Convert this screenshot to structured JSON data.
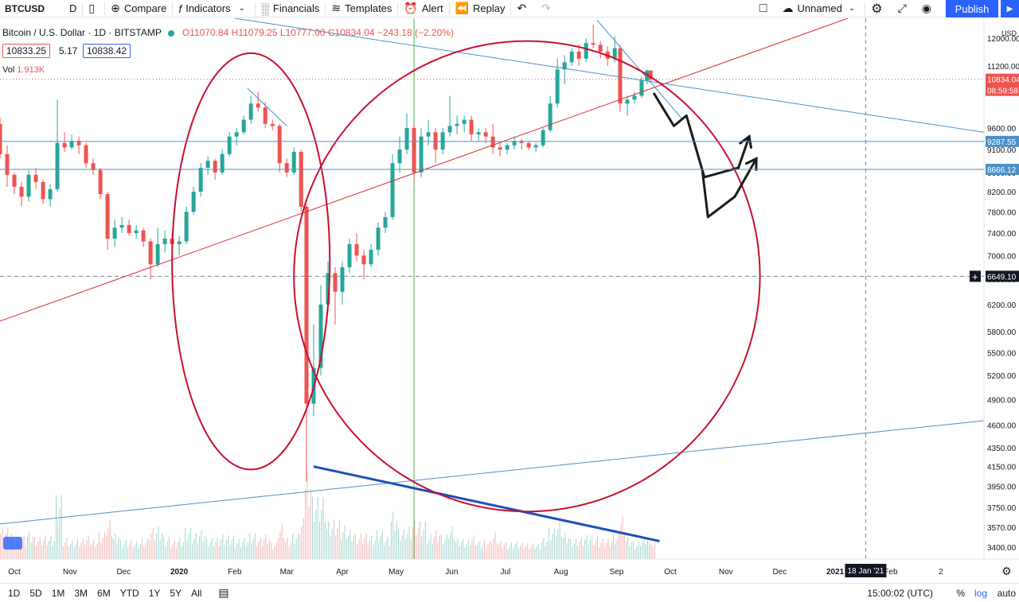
{
  "toolbar": {
    "symbol": "BTCUSD",
    "interval": "D",
    "compare": "Compare",
    "indicators": "Indicators",
    "financials": "Financials",
    "templates": "Templates",
    "alert": "Alert",
    "replay": "Replay",
    "layout_name": "Unnamed",
    "publish": "Publish"
  },
  "legend": {
    "title": "Bitcoin / U.S. Dollar · 1D · BITSTAMP",
    "ohlc": "O11070.84 H11079.25 L10777.00 C10834.04 −243.18 (−2.20%)",
    "bid": "10833.25",
    "spread": "5.17",
    "ask": "10838.42",
    "vol_label": "Vol",
    "vol_value": "1.913K"
  },
  "bottom": {
    "ranges": [
      "1D",
      "5D",
      "1M",
      "3M",
      "6M",
      "YTD",
      "1Y",
      "5Y",
      "All"
    ],
    "clock": "15:00:02 (UTC)",
    "percent": "%",
    "log": "log",
    "auto": "auto"
  },
  "colors": {
    "up": "#26a69a",
    "down": "#ef5350",
    "accent": "#2962ff",
    "circle": "#c8102e",
    "trend_red": "#d32f2f",
    "trend_blue": "#1e4fb8",
    "hline": "#4a90c8"
  },
  "chart_data": {
    "type": "candlestick",
    "title": "Bitcoin / U.S. Dollar · 1D · BITSTAMP",
    "y_scale": "log",
    "ylim": [
      3300,
      12600
    ],
    "y_ticks": [
      3400,
      3570,
      3750,
      3950,
      4150,
      4350,
      4600,
      4900,
      5200,
      5500,
      5800,
      6200,
      6600,
      7000,
      7400,
      7800,
      8200,
      8600,
      9100,
      9600,
      11200,
      12000
    ],
    "x_ticks": [
      {
        "label": "Oct",
        "date": "2019-10-01"
      },
      {
        "label": "Nov",
        "date": "2019-11-01"
      },
      {
        "label": "Dec",
        "date": "2019-12-01"
      },
      {
        "label": "2020",
        "date": "2020-01-01"
      },
      {
        "label": "Feb",
        "date": "2020-02-01"
      },
      {
        "label": "Mar",
        "date": "2020-03-01"
      },
      {
        "label": "Apr",
        "date": "2020-04-01"
      },
      {
        "label": "May",
        "date": "2020-05-01"
      },
      {
        "label": "Jun",
        "date": "2020-06-01"
      },
      {
        "label": "Jul",
        "date": "2020-07-01"
      },
      {
        "label": "Aug",
        "date": "2020-08-01"
      },
      {
        "label": "Sep",
        "date": "2020-09-01"
      },
      {
        "label": "Oct",
        "date": "2020-10-01"
      },
      {
        "label": "Nov",
        "date": "2020-11-01"
      },
      {
        "label": "Dec",
        "date": "2020-12-01"
      },
      {
        "label": "2021",
        "date": "2021-01-01"
      },
      {
        "label": "Feb",
        "date": "2021-02-01"
      },
      {
        "label": "2",
        "date": "2021-03-01"
      }
    ],
    "x_range": [
      "2019-09-23",
      "2021-03-25"
    ],
    "axis_currency": "USD",
    "candles": [
      [
        "2019-09-23",
        9700,
        9850,
        8900,
        9000
      ],
      [
        "2019-09-27",
        9000,
        9200,
        8300,
        8550
      ],
      [
        "2019-10-01",
        8550,
        8600,
        8150,
        8300
      ],
      [
        "2019-10-05",
        8300,
        8400,
        7900,
        8100
      ],
      [
        "2019-10-09",
        8100,
        8650,
        8000,
        8550
      ],
      [
        "2019-10-13",
        8550,
        8700,
        8250,
        8400
      ],
      [
        "2019-10-17",
        8400,
        8450,
        7950,
        8050
      ],
      [
        "2019-10-21",
        8050,
        8350,
        7900,
        8250
      ],
      [
        "2019-10-25",
        8250,
        10300,
        8200,
        9250
      ],
      [
        "2019-10-29",
        9250,
        9500,
        9050,
        9150
      ],
      [
        "2019-11-02",
        9150,
        9450,
        9100,
        9300
      ],
      [
        "2019-11-06",
        9300,
        9400,
        9000,
        9200
      ],
      [
        "2019-11-10",
        9200,
        9250,
        8700,
        8800
      ],
      [
        "2019-11-14",
        8800,
        8900,
        8550,
        8650
      ],
      [
        "2019-11-18",
        8650,
        8700,
        8050,
        8150
      ],
      [
        "2019-11-22",
        8150,
        8200,
        7100,
        7300
      ],
      [
        "2019-11-26",
        7300,
        7650,
        7150,
        7500
      ],
      [
        "2019-11-30",
        7500,
        7700,
        7400,
        7550
      ],
      [
        "2019-12-04",
        7550,
        7650,
        7350,
        7400
      ],
      [
        "2019-12-08",
        7400,
        7550,
        7300,
        7450
      ],
      [
        "2019-12-12",
        7450,
        7500,
        7150,
        7250
      ],
      [
        "2019-12-16",
        7250,
        7300,
        6600,
        6850
      ],
      [
        "2019-12-20",
        6850,
        7500,
        6800,
        7200
      ],
      [
        "2019-12-24",
        7200,
        7450,
        7050,
        7300
      ],
      [
        "2019-12-28",
        7300,
        7400,
        7150,
        7200
      ],
      [
        "2020-01-01",
        7200,
        7350,
        7000,
        7250
      ],
      [
        "2020-01-05",
        7250,
        7900,
        7200,
        7800
      ],
      [
        "2020-01-09",
        7800,
        8300,
        7750,
        8200
      ],
      [
        "2020-01-13",
        8200,
        8800,
        8100,
        8700
      ],
      [
        "2020-01-17",
        8700,
        8950,
        8550,
        8850
      ],
      [
        "2020-01-21",
        8850,
        8900,
        8450,
        8600
      ],
      [
        "2020-01-25",
        8600,
        9100,
        8550,
        9000
      ],
      [
        "2020-01-29",
        9000,
        9500,
        8950,
        9400
      ],
      [
        "2020-02-02",
        9400,
        9600,
        9200,
        9500
      ],
      [
        "2020-02-06",
        9500,
        9900,
        9450,
        9800
      ],
      [
        "2020-02-10",
        9800,
        10400,
        9700,
        10200
      ],
      [
        "2020-02-14",
        10200,
        10500,
        10000,
        10100
      ],
      [
        "2020-02-18",
        10100,
        10250,
        9600,
        9700
      ],
      [
        "2020-02-22",
        9700,
        9800,
        9550,
        9650
      ],
      [
        "2020-02-26",
        9650,
        9700,
        8600,
        8800
      ],
      [
        "2020-03-01",
        8800,
        8900,
        8500,
        8600
      ],
      [
        "2020-03-05",
        8600,
        9150,
        8550,
        9050
      ],
      [
        "2020-03-09",
        9050,
        9100,
        7800,
        7900
      ],
      [
        "2020-03-12",
        7900,
        7950,
        4000,
        4850
      ],
      [
        "2020-03-16",
        4850,
        5900,
        4700,
        5300
      ],
      [
        "2020-03-20",
        5300,
        6500,
        5200,
        6200
      ],
      [
        "2020-03-24",
        6200,
        6900,
        6100,
        6700
      ],
      [
        "2020-03-28",
        6700,
        6800,
        5900,
        6400
      ],
      [
        "2020-04-01",
        6400,
        6900,
        6200,
        6800
      ],
      [
        "2020-04-05",
        6800,
        7300,
        6700,
        7200
      ],
      [
        "2020-04-09",
        7200,
        7400,
        6900,
        7000
      ],
      [
        "2020-04-13",
        7000,
        7100,
        6600,
        6850
      ],
      [
        "2020-04-17",
        6850,
        7200,
        6800,
        7100
      ],
      [
        "2020-04-21",
        7100,
        7600,
        7000,
        7500
      ],
      [
        "2020-04-25",
        7500,
        7800,
        7400,
        7700
      ],
      [
        "2020-04-29",
        7700,
        9000,
        7650,
        8800
      ],
      [
        "2020-05-03",
        8800,
        9400,
        8600,
        9100
      ],
      [
        "2020-05-07",
        9100,
        9950,
        9000,
        9600
      ],
      [
        "2020-05-11",
        9600,
        9700,
        8400,
        8600
      ],
      [
        "2020-05-15",
        8600,
        9600,
        8500,
        9400
      ],
      [
        "2020-05-19",
        9400,
        9800,
        9200,
        9500
      ],
      [
        "2020-05-23",
        9500,
        9600,
        8800,
        9100
      ],
      [
        "2020-05-27",
        9100,
        9600,
        9000,
        9500
      ],
      [
        "2020-05-31",
        9500,
        10400,
        9400,
        9650
      ],
      [
        "2020-06-04",
        9650,
        9900,
        9450,
        9700
      ],
      [
        "2020-06-08",
        9700,
        9900,
        9500,
        9800
      ],
      [
        "2020-06-12",
        9800,
        9900,
        9300,
        9450
      ],
      [
        "2020-06-16",
        9450,
        9600,
        9300,
        9500
      ],
      [
        "2020-06-20",
        9500,
        9600,
        9250,
        9400
      ],
      [
        "2020-06-24",
        9400,
        9700,
        9000,
        9150
      ],
      [
        "2020-06-28",
        9150,
        9250,
        8950,
        9100
      ],
      [
        "2020-07-02",
        9100,
        9250,
        9000,
        9200
      ],
      [
        "2020-07-06",
        9200,
        9400,
        9100,
        9300
      ],
      [
        "2020-07-10",
        9300,
        9350,
        9100,
        9250
      ],
      [
        "2020-07-14",
        9250,
        9300,
        9100,
        9150
      ],
      [
        "2020-07-18",
        9150,
        9250,
        9050,
        9200
      ],
      [
        "2020-07-22",
        9200,
        9600,
        9150,
        9550
      ],
      [
        "2020-07-26",
        9550,
        10400,
        9500,
        10200
      ],
      [
        "2020-07-30",
        10200,
        11400,
        10100,
        11100
      ],
      [
        "2020-08-03",
        11100,
        11500,
        10700,
        11300
      ],
      [
        "2020-08-07",
        11300,
        11700,
        11200,
        11600
      ],
      [
        "2020-08-11",
        11600,
        11800,
        11200,
        11400
      ],
      [
        "2020-08-15",
        11400,
        12000,
        11300,
        11850
      ],
      [
        "2020-08-19",
        11850,
        12400,
        11700,
        11800
      ],
      [
        "2020-08-23",
        11800,
        11900,
        11400,
        11600
      ],
      [
        "2020-08-27",
        11600,
        11750,
        11200,
        11400
      ],
      [
        "2020-08-31",
        11400,
        12050,
        11300,
        11700
      ],
      [
        "2020-09-03",
        11700,
        11800,
        10000,
        10200
      ],
      [
        "2020-09-07",
        10200,
        10400,
        9900,
        10300
      ],
      [
        "2020-09-11",
        10300,
        10500,
        10200,
        10400
      ],
      [
        "2020-09-15",
        10400,
        10900,
        10350,
        10800
      ],
      [
        "2020-09-18",
        10800,
        11100,
        10700,
        11070
      ],
      [
        "2020-09-20",
        11070,
        11079,
        10777,
        10834
      ]
    ],
    "horizontal_levels": [
      {
        "price": 9287.55,
        "label": "9287.55"
      },
      {
        "price": 8666.12,
        "label": "8666.12"
      }
    ],
    "price_labels": [
      {
        "price": 10834.04,
        "label": "10834.04",
        "countdown": "08:59:58"
      }
    ],
    "crosshair": {
      "price": 6649.1,
      "label": "6649.10",
      "date_label": "18 Jan '21",
      "date": "2021-01-18"
    },
    "vertical_marker_date": "2020-05-11",
    "trendlines": [
      {
        "color": "trend_red",
        "points": [
          [
            "2019-09-23",
            5950
          ],
          [
            "2021-01-18",
            12800
          ]
        ]
      },
      {
        "color": "hline",
        "points": [
          [
            "2019-09-23",
            3600
          ],
          [
            "2021-03-25",
            4650
          ]
        ]
      },
      {
        "color": "hline",
        "points": [
          [
            "2020-02-01",
            12600
          ],
          [
            "2021-03-25",
            9500
          ]
        ]
      },
      {
        "color": "trend_blue",
        "width": 3,
        "points": [
          [
            "2020-03-16",
            4150
          ],
          [
            "2020-09-25",
            3450
          ]
        ]
      },
      {
        "color": "hline",
        "points": [
          [
            "2020-02-08",
            10600
          ],
          [
            "2020-03-01",
            9650
          ]
        ]
      },
      {
        "color": "hline",
        "points": [
          [
            "2020-08-21",
            12550
          ],
          [
            "2020-10-08",
            9800
          ]
        ]
      }
    ],
    "circles": [
      {
        "center_date": "2020-02-10",
        "center_price": 6900,
        "rx_days": 44,
        "ry_frac": 0.385
      },
      {
        "center_date": "2020-07-13",
        "center_price": 6649.1,
        "rx_days": 130,
        "ry_frac": 0.435
      }
    ],
    "arrows": [
      [
        [
          "2020-09-22",
          10450
        ],
        [
          "2020-10-03",
          9650
        ],
        [
          "2020-10-10",
          9900
        ],
        [
          "2020-10-20",
          8500
        ],
        [
          "2020-11-08",
          8700
        ],
        [
          "2020-11-14",
          9400
        ]
      ],
      [
        [
          "2020-10-19",
          8600
        ],
        [
          "2020-10-22",
          7700
        ],
        [
          "2020-11-06",
          8100
        ],
        [
          "2020-11-18",
          8900
        ]
      ]
    ],
    "volume": {
      "label": "Vol",
      "last": "1.913K"
    }
  }
}
